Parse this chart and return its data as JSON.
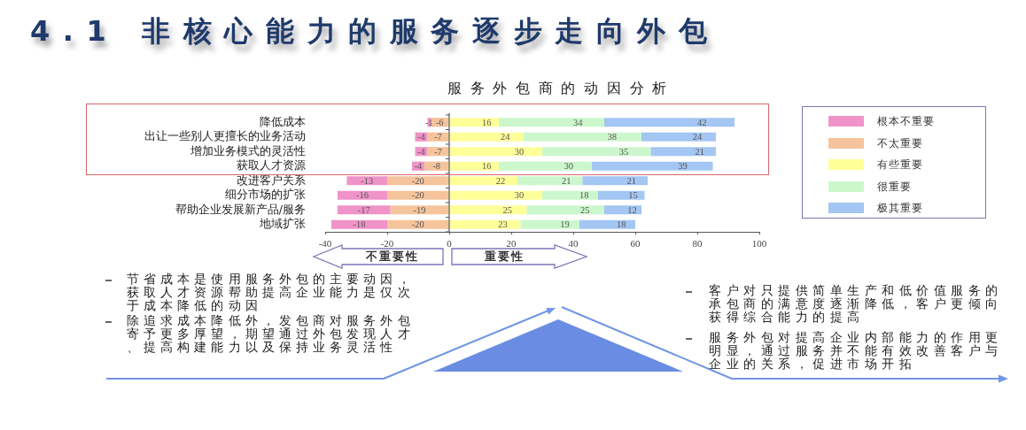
{
  "chart_data": {
    "type": "bar",
    "orientation": "horizontal",
    "stacked": true,
    "title": "4.1 非核心能力的服务逐步走向外包",
    "subtitle": "服务外包商的动因分析",
    "categories": [
      "降低成本",
      "出让一些别人更擅长的业务活动",
      "增加业务模式的灵活性",
      "获取人才资源",
      "改进客户关系",
      "细分市场的扩张",
      "帮助企业发展新产品/服务",
      "地域扩张"
    ],
    "series": [
      {
        "name": "不太重要",
        "color": "#f5c49c",
        "values": [
          -6,
          -7,
          -7,
          -8,
          -20,
          -20,
          -19,
          -20
        ]
      },
      {
        "name": "根本不重要",
        "color": "#f093c8",
        "values": [
          -1,
          -4,
          -4,
          -4,
          -13,
          -16,
          -17,
          -18
        ]
      },
      {
        "name": "有些重要",
        "color": "#ffff99",
        "values": [
          16,
          24,
          30,
          16,
          22,
          30,
          25,
          23
        ]
      },
      {
        "name": "很重要",
        "color": "#ccf7cc",
        "values": [
          34,
          38,
          35,
          30,
          21,
          18,
          25,
          19
        ]
      },
      {
        "name": "极其重要",
        "color": "#a3c6f2",
        "values": [
          42,
          24,
          21,
          39,
          21,
          15,
          12,
          18
        ]
      }
    ],
    "xlim": [
      -40,
      100
    ],
    "xticks": [
      -40,
      -20,
      0,
      20,
      40,
      60,
      80,
      100
    ],
    "data_labels": true,
    "legend": "right",
    "annotations": [
      "不重要性",
      "重要性",
      "节省成本是使用服务外包的主要动因，获取人才资源帮助提高企业能力是仅次于成本降低的动因",
      "除追求成本降低外，发包商对服务外包寄予更多厚望，期望通过外包发现人才、提高构建能力以及保持业务灵活性",
      "客户对只提供简单生产和低价值服务的承包商的满意度逐渐降低，客户更倾向获得综合能力的提高",
      "服务外包对提高企业内部能力的作用更明显，通过服务并不能有效改善客户与企业的关系，促进市场开拓"
    ]
  }
}
